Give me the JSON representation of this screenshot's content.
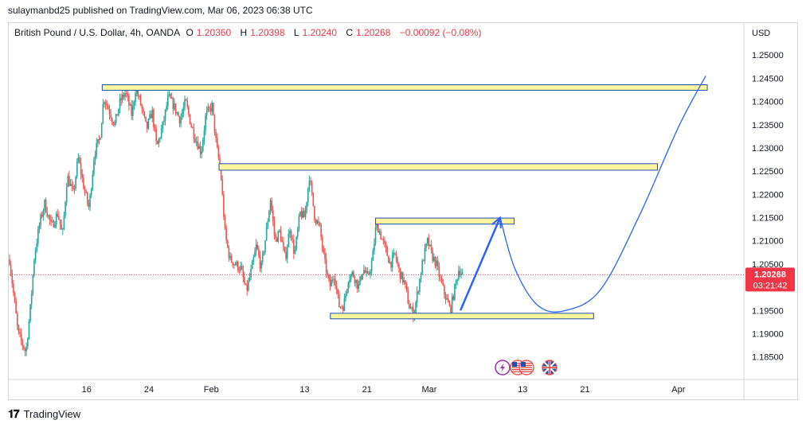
{
  "header": {
    "published": "sulaymanbd25 published on TradingView.com, Mar 06, 2023 06:38 UTC"
  },
  "symbol": {
    "name": "British Pound / U.S. Dollar, 4h, OANDA",
    "open_label": "O",
    "open": "1.20360",
    "high_label": "H",
    "high": "1.20398",
    "low_label": "L",
    "low": "1.20240",
    "close_label": "C",
    "close": "1.20268",
    "change": "−0.00092 (−0.08%)"
  },
  "price_tag": {
    "price": "1.20268",
    "countdown": "03:21:42"
  },
  "footer": {
    "brand": "TradingView"
  },
  "colors": {
    "up": "#26a69a",
    "down": "#ef5350",
    "zone_fill": "#fff59d",
    "zone_border": "#1e4fb4",
    "projection": "#2962ff",
    "tag": "#f23645"
  },
  "chart_data": {
    "type": "candlestick",
    "currency": "USD",
    "y_ticks": [
      "1.25000",
      "1.24500",
      "1.24000",
      "1.23500",
      "1.23000",
      "1.22500",
      "1.22000",
      "1.21500",
      "1.21000",
      "1.20500",
      "1.20000",
      "1.19500",
      "1.19000",
      "1.18500"
    ],
    "ylim": [
      1.1822,
      1.2526
    ],
    "x_ticks": [
      {
        "label": "16",
        "x": 16
      },
      {
        "label": "24",
        "x": 24
      },
      {
        "label": "Feb",
        "x": 32
      },
      {
        "label": "13",
        "x": 44
      },
      {
        "label": "21",
        "x": 52
      },
      {
        "label": "Mar",
        "x": 60
      },
      {
        "label": "13",
        "x": 72
      },
      {
        "label": "21",
        "x": 80
      },
      {
        "label": "Apr",
        "x": 92
      }
    ],
    "xlim": [
      6.1,
      100.4
    ],
    "last_price": 1.20268,
    "series_days_start": 6.1,
    "series_days_end": 64.3,
    "anchors": [
      [
        6.1,
        1.206
      ],
      [
        7.2,
        1.19
      ],
      [
        8.2,
        1.186
      ],
      [
        8.8,
        1.196
      ],
      [
        9.3,
        1.207
      ],
      [
        10.0,
        1.214
      ],
      [
        10.6,
        1.218
      ],
      [
        11.5,
        1.213
      ],
      [
        12.3,
        1.216
      ],
      [
        12.9,
        1.211
      ],
      [
        13.5,
        1.224
      ],
      [
        14.3,
        1.22
      ],
      [
        14.9,
        1.228
      ],
      [
        15.7,
        1.221
      ],
      [
        16.3,
        1.217
      ],
      [
        17.0,
        1.229
      ],
      [
        17.7,
        1.232
      ],
      [
        18.2,
        1.241
      ],
      [
        18.9,
        1.238
      ],
      [
        19.6,
        1.235
      ],
      [
        20.3,
        1.24
      ],
      [
        21.0,
        1.242
      ],
      [
        21.8,
        1.237
      ],
      [
        22.3,
        1.243
      ],
      [
        23.0,
        1.239
      ],
      [
        23.7,
        1.234
      ],
      [
        24.4,
        1.238
      ],
      [
        25.0,
        1.23
      ],
      [
        25.8,
        1.235
      ],
      [
        26.5,
        1.241
      ],
      [
        27.2,
        1.239
      ],
      [
        28.0,
        1.236
      ],
      [
        28.7,
        1.24
      ],
      [
        29.4,
        1.235
      ],
      [
        30.0,
        1.232
      ],
      [
        30.7,
        1.229
      ],
      [
        31.3,
        1.237
      ],
      [
        32.1,
        1.239
      ],
      [
        32.7,
        1.23
      ],
      [
        33.2,
        1.225
      ],
      [
        33.8,
        1.211
      ],
      [
        34.4,
        1.206
      ],
      [
        35.1,
        1.205
      ],
      [
        35.8,
        1.204
      ],
      [
        36.5,
        1.199
      ],
      [
        37.2,
        1.204
      ],
      [
        37.8,
        1.209
      ],
      [
        38.4,
        1.204
      ],
      [
        39.0,
        1.211
      ],
      [
        39.6,
        1.219
      ],
      [
        40.2,
        1.21
      ],
      [
        40.8,
        1.212
      ],
      [
        41.5,
        1.206
      ],
      [
        42.1,
        1.213
      ],
      [
        42.7,
        1.207
      ],
      [
        43.4,
        1.216
      ],
      [
        44.0,
        1.215
      ],
      [
        44.6,
        1.224
      ],
      [
        45.3,
        1.215
      ],
      [
        45.9,
        1.213
      ],
      [
        46.5,
        1.206
      ],
      [
        47.2,
        1.2
      ],
      [
        47.8,
        1.203
      ],
      [
        48.4,
        1.196
      ],
      [
        49.0,
        1.196
      ],
      [
        49.6,
        1.202
      ],
      [
        50.2,
        1.203
      ],
      [
        50.9,
        1.2
      ],
      [
        51.5,
        1.204
      ],
      [
        52.1,
        1.202
      ],
      [
        52.7,
        1.206
      ],
      [
        53.2,
        1.214
      ],
      [
        53.8,
        1.211
      ],
      [
        54.4,
        1.208
      ],
      [
        55.0,
        1.205
      ],
      [
        55.6,
        1.207
      ],
      [
        56.2,
        1.203
      ],
      [
        56.8,
        1.201
      ],
      [
        57.4,
        1.196
      ],
      [
        58.0,
        1.194
      ],
      [
        58.6,
        1.2
      ],
      [
        59.2,
        1.206
      ],
      [
        59.8,
        1.21
      ],
      [
        60.3,
        1.207
      ],
      [
        60.9,
        1.205
      ],
      [
        61.5,
        1.201
      ],
      [
        62.1,
        1.198
      ],
      [
        62.7,
        1.195
      ],
      [
        63.3,
        1.2
      ],
      [
        63.8,
        1.204
      ],
      [
        64.3,
        1.2027
      ]
    ],
    "zones": [
      {
        "x0": 18.0,
        "x1": 95.7,
        "y0": 1.243,
        "y1": 1.2436
      },
      {
        "x0": 33.0,
        "x1": 89.3,
        "y0": 1.2252,
        "y1": 1.2266
      },
      {
        "x0": 53.1,
        "x1": 70.9,
        "y0": 1.2136,
        "y1": 1.2149
      },
      {
        "x0": 47.3,
        "x1": 81.1,
        "y0": 1.1935,
        "y1": 1.1944
      }
    ],
    "arrow": {
      "from": [
        64.0,
        1.195
      ],
      "to": [
        69.1,
        1.215
      ]
    },
    "projection_curve": [
      [
        69.1,
        1.215
      ],
      [
        71.0,
        1.204
      ],
      [
        74.0,
        1.196
      ],
      [
        77.5,
        1.195
      ],
      [
        82.0,
        1.1995
      ],
      [
        87.0,
        1.2155
      ],
      [
        92.0,
        1.2345
      ],
      [
        95.5,
        1.2455
      ]
    ],
    "indicators": [
      "lightning-icon",
      "us-flag-icon",
      "us-flag-icon",
      "uk-flag-icon"
    ]
  }
}
